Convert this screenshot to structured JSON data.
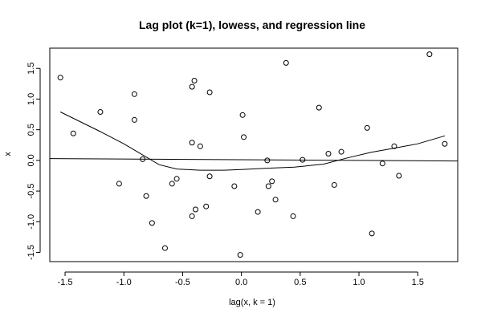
{
  "chart_data": {
    "type": "scatter",
    "title": "Lag plot (k=1), lowess, and regression line",
    "xlabel": "lag(x, k = 1)",
    "ylabel": "x",
    "xlim": [
      -1.63,
      1.84
    ],
    "ylim": [
      -1.65,
      1.83
    ],
    "xticks": [
      -1.5,
      -1.0,
      -0.5,
      0.0,
      0.5,
      1.0,
      1.5
    ],
    "xtick_labels": [
      "-1.5",
      "-1.0",
      "-0.5",
      "0.0",
      "0.5",
      "1.0",
      "1.5"
    ],
    "yticks": [
      -1.5,
      -1.0,
      -0.5,
      0.0,
      0.5,
      1.0,
      1.5
    ],
    "ytick_labels": [
      "-1.5",
      "-1.0",
      "-0.5",
      "0.0",
      "0.5",
      "1.0",
      "1.5"
    ],
    "grid": false,
    "legend": "none",
    "marker": "open-circle",
    "colors": {
      "points": "#000000",
      "lines": "#000000",
      "axis": "#000000",
      "background": "#ffffff"
    },
    "points": [
      {
        "x": -1.54,
        "y": 1.35
      },
      {
        "x": -1.43,
        "y": 0.44
      },
      {
        "x": -1.2,
        "y": 0.79
      },
      {
        "x": -1.04,
        "y": -0.38
      },
      {
        "x": -0.91,
        "y": 1.08
      },
      {
        "x": -0.91,
        "y": 0.66
      },
      {
        "x": -0.84,
        "y": 0.02
      },
      {
        "x": -0.81,
        "y": -0.58
      },
      {
        "x": -0.76,
        "y": -1.02
      },
      {
        "x": -0.65,
        "y": -1.43
      },
      {
        "x": -0.59,
        "y": -0.38
      },
      {
        "x": -0.55,
        "y": -0.3
      },
      {
        "x": -0.42,
        "y": 1.2
      },
      {
        "x": -0.4,
        "y": 1.3
      },
      {
        "x": -0.42,
        "y": 0.29
      },
      {
        "x": -0.42,
        "y": -0.91
      },
      {
        "x": -0.39,
        "y": -0.8
      },
      {
        "x": -0.35,
        "y": 0.23
      },
      {
        "x": -0.3,
        "y": -0.75
      },
      {
        "x": -0.27,
        "y": 1.11
      },
      {
        "x": -0.27,
        "y": -0.26
      },
      {
        "x": -0.06,
        "y": -0.42
      },
      {
        "x": -0.01,
        "y": -1.54
      },
      {
        "x": 0.01,
        "y": 0.74
      },
      {
        "x": 0.02,
        "y": 0.38
      },
      {
        "x": 0.14,
        "y": -0.84
      },
      {
        "x": 0.22,
        "y": 0.0
      },
      {
        "x": 0.23,
        "y": -0.42
      },
      {
        "x": 0.26,
        "y": -0.34
      },
      {
        "x": 0.29,
        "y": -0.64
      },
      {
        "x": 0.38,
        "y": 1.59
      },
      {
        "x": 0.44,
        "y": -0.91
      },
      {
        "x": 0.52,
        "y": 0.01
      },
      {
        "x": 0.66,
        "y": 0.86
      },
      {
        "x": 0.74,
        "y": 0.11
      },
      {
        "x": 0.79,
        "y": -0.4
      },
      {
        "x": 0.85,
        "y": 0.14
      },
      {
        "x": 1.07,
        "y": 0.53
      },
      {
        "x": 1.11,
        "y": -1.19
      },
      {
        "x": 1.2,
        "y": -0.05
      },
      {
        "x": 1.3,
        "y": 0.23
      },
      {
        "x": 1.34,
        "y": -0.25
      },
      {
        "x": 1.6,
        "y": 1.73
      },
      {
        "x": 1.73,
        "y": 0.27
      }
    ],
    "regression_line": {
      "x": [
        -1.63,
        1.84
      ],
      "y": [
        0.03,
        -0.01
      ]
    },
    "lowess": {
      "x": [
        -1.54,
        -1.2,
        -1.0,
        -0.85,
        -0.7,
        -0.55,
        -0.35,
        -0.15,
        0.0,
        0.2,
        0.45,
        0.7,
        0.9,
        1.1,
        1.3,
        1.5,
        1.73
      ],
      "y": [
        0.79,
        0.47,
        0.27,
        0.1,
        -0.07,
        -0.14,
        -0.16,
        -0.16,
        -0.15,
        -0.13,
        -0.11,
        -0.06,
        0.04,
        0.13,
        0.2,
        0.27,
        0.4
      ]
    }
  }
}
